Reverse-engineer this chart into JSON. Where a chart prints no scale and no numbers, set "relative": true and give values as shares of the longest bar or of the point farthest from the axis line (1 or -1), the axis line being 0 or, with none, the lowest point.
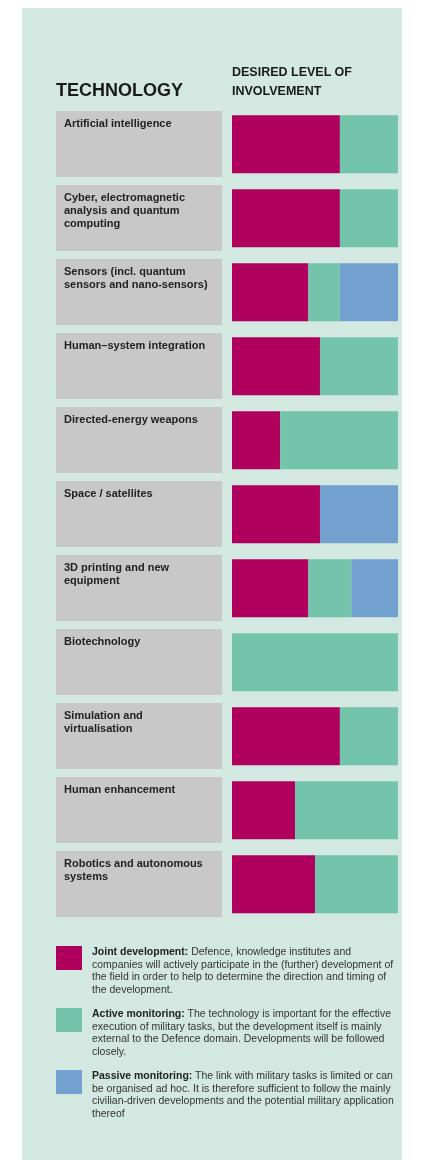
{
  "chart_data": {
    "type": "bar",
    "orientation": "horizontal",
    "stacked": true,
    "relative": true,
    "legend": "bottom",
    "ylabel": "TECHNOLOGY",
    "xlabel": "DESIRED LEVEL OF INVOLVEMENT",
    "categories": [
      "Artificial intelligence",
      "Cyber, electromagnetic analysis and quantum computing",
      "Sensors (incl. quantum sensors and nano-sensors)",
      "Human–system integration",
      "Directed-energy weapons",
      "Space / satellites",
      "3D printing and new equipment",
      "Biotechnology",
      "Simulation and virtualisation",
      "Human enhancement",
      "Robotics and autonomous systems"
    ],
    "series": [
      {
        "name": "Joint development:",
        "color": "#b0005e",
        "values": [
          0.65,
          0.65,
          0.46,
          0.53,
          0.29,
          0.53,
          0.46,
          null,
          0.65,
          0.38,
          0.5
        ]
      },
      {
        "name": "Active monitoring:",
        "color": "#74c4ab",
        "values": [
          0.35,
          0.35,
          0.19,
          0.47,
          0.71,
          null,
          0.26,
          1,
          0.35,
          0.62,
          0.5
        ]
      },
      {
        "name": "Passive monitoring:",
        "color": "#73a1cf",
        "values": [
          null,
          null,
          0.35,
          null,
          null,
          0.47,
          0.28,
          null,
          null,
          null,
          null
        ]
      }
    ],
    "annotations": [
      "Defence, knowledge institutes and companies will actively participate in the (further) development of the field in order to help to determine the direction and timing of the development.",
      "The technology is important for the effective execution of military tasks, but the development itself is mainly external to the Defence domain. Developments will be followed closely.",
      "The link with military tasks is limited or can be organised ad hoc. It is therefore sufficient to follow the mainly civilian-driven developments and the potential military application thereof"
    ]
  }
}
